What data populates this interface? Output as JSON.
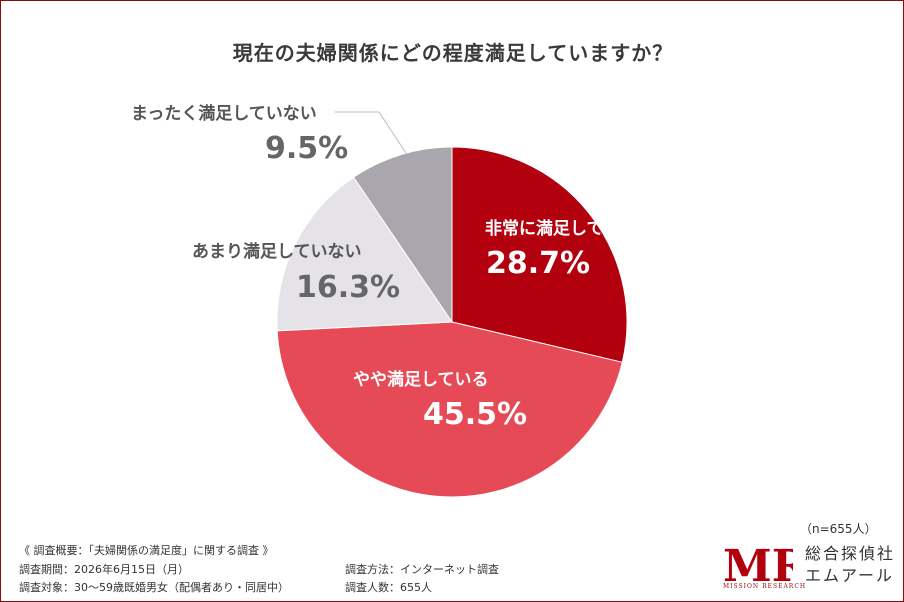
{
  "title": "現在の夫婦関係にどの程度満足していますか？",
  "chart_data": {
    "type": "pie",
    "title": "現在の夫婦関係にどの程度満足していますか？",
    "slices": [
      {
        "label": "非常に満足している",
        "value": 28.7,
        "display": "28.7%",
        "color": "#b3000f"
      },
      {
        "label": "やや満足している",
        "value": 45.5,
        "display": "45.5%",
        "color": "#e74a57"
      },
      {
        "label": "あまり満足していない",
        "value": 16.3,
        "display": "16.3%",
        "color": "#e5e3e8"
      },
      {
        "label": "まったく満足していない",
        "value": 9.5,
        "display": "9.5%",
        "color": "#a9a6ae"
      }
    ],
    "start": "12 o'clock, clockwise"
  },
  "sample_size": "（n=655人）",
  "survey": {
    "overview": "《 調査概要：「夫婦関係の満足度」に関する調査 》",
    "period": "調査期間：2026年6月15日（月）",
    "target": "調査対象：30〜59歳既婚男女（配偶者あり・同居中）",
    "method": "調査方法：インターネット調査",
    "count": "調査人数：655人"
  },
  "brand": {
    "mark": "MR",
    "name_line1": "総合探偵社",
    "name_line2": "エムアール",
    "sub": "MISSION RESEARCH",
    "color": "#b3000f"
  }
}
